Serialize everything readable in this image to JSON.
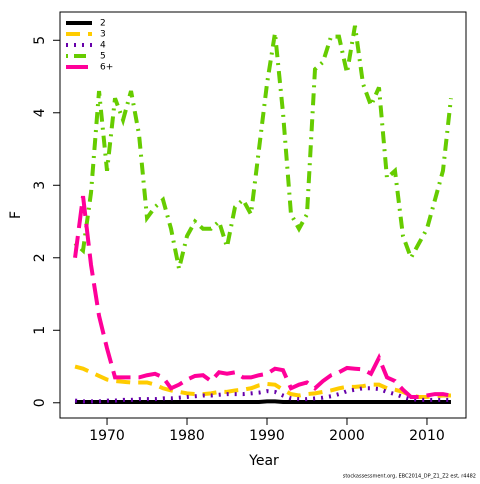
{
  "chart_data": {
    "type": "line",
    "xlabel": "Year",
    "ylabel": "F",
    "footer": "stockassessment.org, EBC2014_DP_Z1_Z2 est, r4482",
    "x": [
      1966,
      1967,
      1968,
      1969,
      1970,
      1971,
      1972,
      1973,
      1974,
      1975,
      1976,
      1977,
      1978,
      1979,
      1980,
      1981,
      1982,
      1983,
      1984,
      1985,
      1986,
      1987,
      1988,
      1989,
      1990,
      1991,
      1992,
      1993,
      1994,
      1995,
      1996,
      1997,
      1998,
      1999,
      2000,
      2001,
      2002,
      2003,
      2004,
      2005,
      2006,
      2007,
      2008,
      2009,
      2010,
      2011,
      2012,
      2013
    ],
    "series": [
      {
        "name": "2",
        "color": "#000000",
        "dash": "",
        "values": [
          0.01,
          0.01,
          0.01,
          0.01,
          0.01,
          0.01,
          0.01,
          0.01,
          0.01,
          0.01,
          0.01,
          0.01,
          0.01,
          0.01,
          0.01,
          0.01,
          0.01,
          0.01,
          0.01,
          0.01,
          0.01,
          0.01,
          0.01,
          0.01,
          0.02,
          0.02,
          0.01,
          0.01,
          0.01,
          0.01,
          0.01,
          0.01,
          0.01,
          0.01,
          0.01,
          0.01,
          0.01,
          0.01,
          0.01,
          0.01,
          0.01,
          0.01,
          0.01,
          0.01,
          0.01,
          0.01,
          0.01,
          0.01
        ]
      },
      {
        "name": "3",
        "color": "#ffcc00",
        "dash": "14 8",
        "values": [
          0.5,
          0.47,
          0.42,
          0.37,
          0.32,
          0.3,
          0.29,
          0.28,
          0.28,
          0.28,
          0.25,
          0.2,
          0.17,
          0.15,
          0.13,
          0.12,
          0.12,
          0.13,
          0.15,
          0.15,
          0.17,
          0.18,
          0.2,
          0.24,
          0.26,
          0.25,
          0.18,
          0.12,
          0.1,
          0.12,
          0.13,
          0.15,
          0.17,
          0.2,
          0.22,
          0.22,
          0.23,
          0.25,
          0.25,
          0.2,
          0.18,
          0.15,
          0.1,
          0.08,
          0.08,
          0.09,
          0.1,
          0.1
        ]
      },
      {
        "name": "4",
        "color": "#6600aa",
        "dash": "2 6",
        "values": [
          0.03,
          0.02,
          0.02,
          0.02,
          0.03,
          0.03,
          0.04,
          0.04,
          0.05,
          0.05,
          0.05,
          0.06,
          0.06,
          0.07,
          0.08,
          0.09,
          0.1,
          0.1,
          0.11,
          0.12,
          0.12,
          0.12,
          0.13,
          0.14,
          0.16,
          0.15,
          0.1,
          0.06,
          0.05,
          0.05,
          0.06,
          0.07,
          0.09,
          0.12,
          0.16,
          0.18,
          0.2,
          0.2,
          0.19,
          0.15,
          0.12,
          0.08,
          0.05,
          0.04,
          0.04,
          0.04,
          0.04,
          0.04
        ]
      },
      {
        "name": "5",
        "color": "#66cc00",
        "dash": "2 6 12 6",
        "values": [
          2.2,
          2.1,
          2.9,
          4.3,
          3.2,
          4.2,
          3.9,
          4.3,
          3.7,
          2.55,
          2.7,
          2.8,
          2.4,
          1.85,
          2.3,
          2.5,
          2.4,
          2.4,
          2.5,
          2.15,
          2.7,
          2.8,
          2.6,
          3.5,
          4.4,
          5.1,
          4.0,
          2.6,
          2.4,
          2.6,
          4.6,
          4.7,
          5.05,
          5.05,
          4.55,
          5.2,
          4.4,
          4.1,
          4.35,
          3.1,
          3.2,
          2.3,
          2.0,
          2.2,
          2.4,
          2.8,
          3.2,
          4.2
        ]
      },
      {
        "name": "6+",
        "color": "#ff0099",
        "dash": "22 8",
        "values": [
          2.0,
          2.85,
          1.9,
          1.2,
          0.75,
          0.35,
          0.35,
          0.35,
          0.35,
          0.38,
          0.4,
          0.35,
          0.2,
          0.25,
          0.32,
          0.37,
          0.38,
          0.3,
          0.42,
          0.4,
          0.42,
          0.35,
          0.35,
          0.38,
          0.4,
          0.47,
          0.45,
          0.2,
          0.25,
          0.28,
          0.2,
          0.3,
          0.38,
          0.42,
          0.48,
          0.47,
          0.46,
          0.4,
          0.62,
          0.35,
          0.3,
          0.18,
          0.08,
          0.08,
          0.1,
          0.12,
          0.12,
          0.1
        ]
      }
    ],
    "xlim": [
      1964.12,
      2014.88
    ],
    "ylim": [
      -0.21,
      5.39
    ],
    "xticks": [
      1970,
      1980,
      1990,
      2000,
      2010
    ],
    "yticks": [
      0,
      1,
      2,
      3,
      4,
      5
    ],
    "legend": "upper left"
  }
}
